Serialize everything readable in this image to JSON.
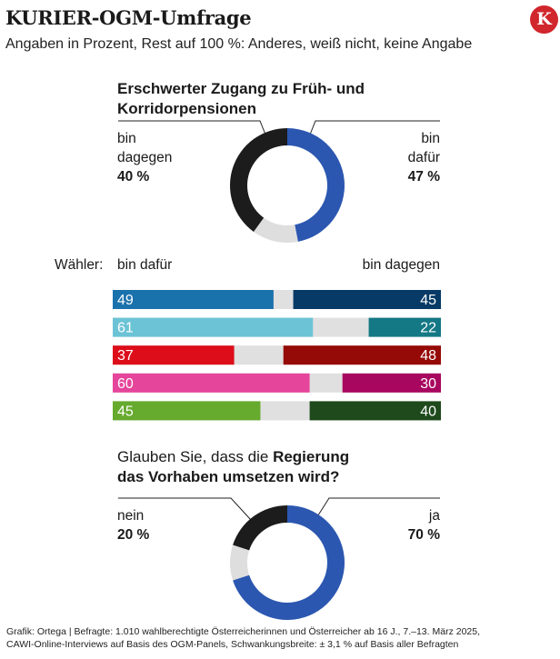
{
  "header": {
    "title": "KURIER-OGM-Umfrage",
    "subtitle": "Angaben in Prozent, Rest auf 100 %: Anderes, weiß nicht, keine Angabe",
    "logo_letter": "K",
    "logo_color": "#d1262c"
  },
  "question1": {
    "title": "Erschwerter Zugang zu Früh- und Korridorpensionen",
    "left_label_line1": "bin",
    "left_label_line2": "dagegen",
    "left_value": "40 %",
    "right_label_line1": "bin",
    "right_label_line2": "dafür",
    "right_value": "47 %"
  },
  "voters": {
    "label": "Wähler:",
    "left_header": "bin dafür",
    "right_header": "bin dagegen"
  },
  "question2": {
    "title_start": "Glauben Sie, dass die ",
    "title_bold1": "Regierung",
    "title_bold2": "das Vorhaben umsetzen wird?",
    "left_label": "nein",
    "left_value": "20 %",
    "right_label": "ja",
    "right_value": "70 %"
  },
  "footnote": {
    "line1": "Grafik: Ortega | Befragte: 1.010 wahlberechtigte Österreicherinnen und Österreicher ab 16 J., 7.–13. März 2025,",
    "line2": "CAWI-Online-Interviews  auf Basis des OGM-Panels, Schwankungsbreite: ± 3,1 % auf Basis aller Befragten"
  },
  "chart_data": [
    {
      "type": "pie",
      "title": "Erschwerter Zugang zu Früh- und Korridorpensionen",
      "slices": [
        {
          "name": "bin dafür",
          "value": 47,
          "color": "#2b57b0"
        },
        {
          "name": "Rest",
          "value": 13,
          "color": "#dedede"
        },
        {
          "name": "bin dagegen",
          "value": 40,
          "color": "#1c1c1c"
        }
      ]
    },
    {
      "type": "bar",
      "title": "Wähler",
      "stacked": true,
      "series": [
        {
          "name": "bin dafür",
          "values": [
            49,
            61,
            37,
            60,
            45
          ]
        },
        {
          "name": "bin dagegen",
          "values": [
            45,
            22,
            48,
            30,
            40
          ]
        }
      ],
      "colors_dafuer": [
        "#1a72ad",
        "#6cc3d6",
        "#dd0d1a",
        "#e5459a",
        "#66aa2e"
      ],
      "colors_dagegen": [
        "#073a66",
        "#147885",
        "#950a06",
        "#a8075f",
        "#1f4a1c"
      ],
      "rest_color": "#e0e0e0"
    },
    {
      "type": "pie",
      "title": "Glauben Sie, dass die Regierung das Vorhaben umsetzen wird?",
      "slices": [
        {
          "name": "ja",
          "value": 70,
          "color": "#2b57b0"
        },
        {
          "name": "Rest",
          "value": 10,
          "color": "#dedede"
        },
        {
          "name": "nein",
          "value": 20,
          "color": "#1c1c1c"
        }
      ]
    }
  ]
}
